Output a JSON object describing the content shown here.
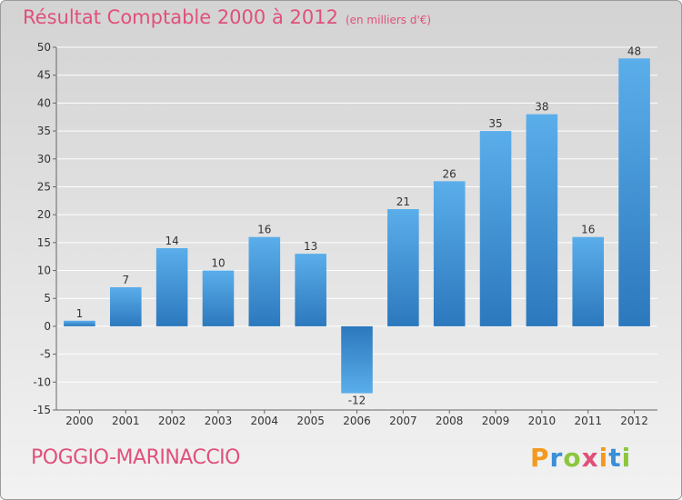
{
  "chart_data": {
    "type": "bar",
    "title": "Résultat Comptable 2000 à 2012",
    "subtitle": "(en milliers d'€)",
    "categories": [
      "2000",
      "2001",
      "2002",
      "2003",
      "2004",
      "2005",
      "2006",
      "2007",
      "2008",
      "2009",
      "2010",
      "2011",
      "2012"
    ],
    "values": [
      1,
      7,
      14,
      10,
      16,
      13,
      -12,
      21,
      26,
      35,
      38,
      16,
      48
    ],
    "value_labels": [
      "1",
      "7",
      "14",
      "10",
      "16",
      "13",
      "-12",
      "21",
      "26",
      "35",
      "38",
      "16",
      "48"
    ],
    "ylim": [
      -15,
      50
    ],
    "yticks": [
      -15,
      -10,
      -5,
      0,
      5,
      10,
      15,
      20,
      25,
      30,
      35,
      40,
      45,
      50
    ],
    "ytick_labels": [
      "-15",
      "-10",
      "-5",
      "0",
      "5",
      "10",
      "15",
      "20",
      "25",
      "30",
      "35",
      "40",
      "45",
      "50"
    ],
    "grid": true,
    "legend": "none",
    "bar_color": "#3a8fd6"
  },
  "footer": {
    "commune": "POGGIO-MARINACCIO",
    "brand": [
      "P",
      "r",
      "o",
      "x",
      "i",
      "t",
      "i"
    ]
  },
  "colors": {
    "title": "#e0507a",
    "brand": [
      "#f39a1e",
      "#3a8fd6",
      "#8cc63e",
      "#e0507a",
      "#f39a1e",
      "#3a8fd6",
      "#8cc63e"
    ]
  }
}
